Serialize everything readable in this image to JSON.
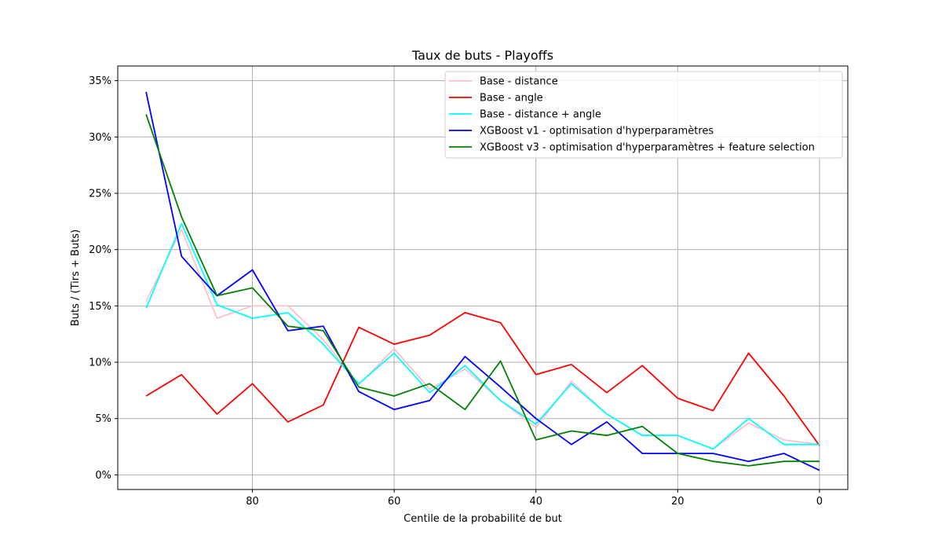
{
  "chart_data": {
    "type": "line",
    "title": "Taux de buts - Playoffs",
    "xlabel": "Centile de la probabilité de but",
    "ylabel": "Buts / (Tirs + Buts)",
    "x_inverted": true,
    "xlim": [
      99,
      -4
    ],
    "ylim": [
      -1.3,
      36.3
    ],
    "x_ticks": [
      80,
      60,
      40,
      20,
      0
    ],
    "x_tick_labels": [
      "80",
      "60",
      "40",
      "20",
      "0"
    ],
    "y_ticks": [
      0,
      5,
      10,
      15,
      20,
      25,
      30,
      35
    ],
    "y_tick_labels": [
      "0%",
      "5%",
      "10%",
      "15%",
      "20%",
      "25%",
      "30%",
      "35%"
    ],
    "grid": true,
    "legend_position": "upper right",
    "x": [
      95,
      90,
      85,
      80,
      75,
      70,
      65,
      60,
      55,
      50,
      45,
      40,
      35,
      30,
      25,
      20,
      15,
      10,
      5,
      0
    ],
    "series": [
      {
        "name": "Base - distance",
        "color": "#ffc0cb",
        "values": [
          15.4,
          21.8,
          13.9,
          15.0,
          15.0,
          12.0,
          8.0,
          11.2,
          7.6,
          9.4,
          6.6,
          4.2,
          8.3,
          5.4,
          3.5,
          3.5,
          2.3,
          4.6,
          3.1,
          2.7
        ]
      },
      {
        "name": "Base - angle",
        "color": "#ff0000",
        "values": [
          7.0,
          8.9,
          5.4,
          8.1,
          4.7,
          6.2,
          13.1,
          11.6,
          12.4,
          14.4,
          13.5,
          8.9,
          9.8,
          7.3,
          9.7,
          6.8,
          5.7,
          10.8,
          7.0,
          2.6
        ]
      },
      {
        "name": "Base - distance + angle",
        "color": "#00ffff",
        "values": [
          14.8,
          22.3,
          15.1,
          13.9,
          14.4,
          11.6,
          8.1,
          10.8,
          7.3,
          9.7,
          6.6,
          4.5,
          8.1,
          5.4,
          3.5,
          3.5,
          2.3,
          5.0,
          2.7,
          2.7
        ]
      },
      {
        "name": "XGBoost v1 - optimisation d'hyperparamètres",
        "color": "#0000ff",
        "values": [
          34.0,
          19.4,
          15.9,
          18.2,
          12.8,
          13.2,
          7.4,
          5.8,
          6.6,
          10.5,
          7.8,
          5.0,
          2.7,
          4.7,
          1.9,
          1.9,
          1.9,
          1.2,
          1.9,
          0.4
        ]
      },
      {
        "name": "XGBoost v3 - optimisation d'hyperparamètres + feature selection",
        "color": "#008000",
        "values": [
          32.0,
          22.9,
          15.9,
          16.6,
          13.2,
          12.8,
          7.8,
          7.0,
          8.1,
          5.8,
          10.1,
          3.1,
          3.9,
          3.5,
          4.3,
          1.9,
          1.2,
          0.8,
          1.2,
          1.2
        ]
      }
    ]
  }
}
